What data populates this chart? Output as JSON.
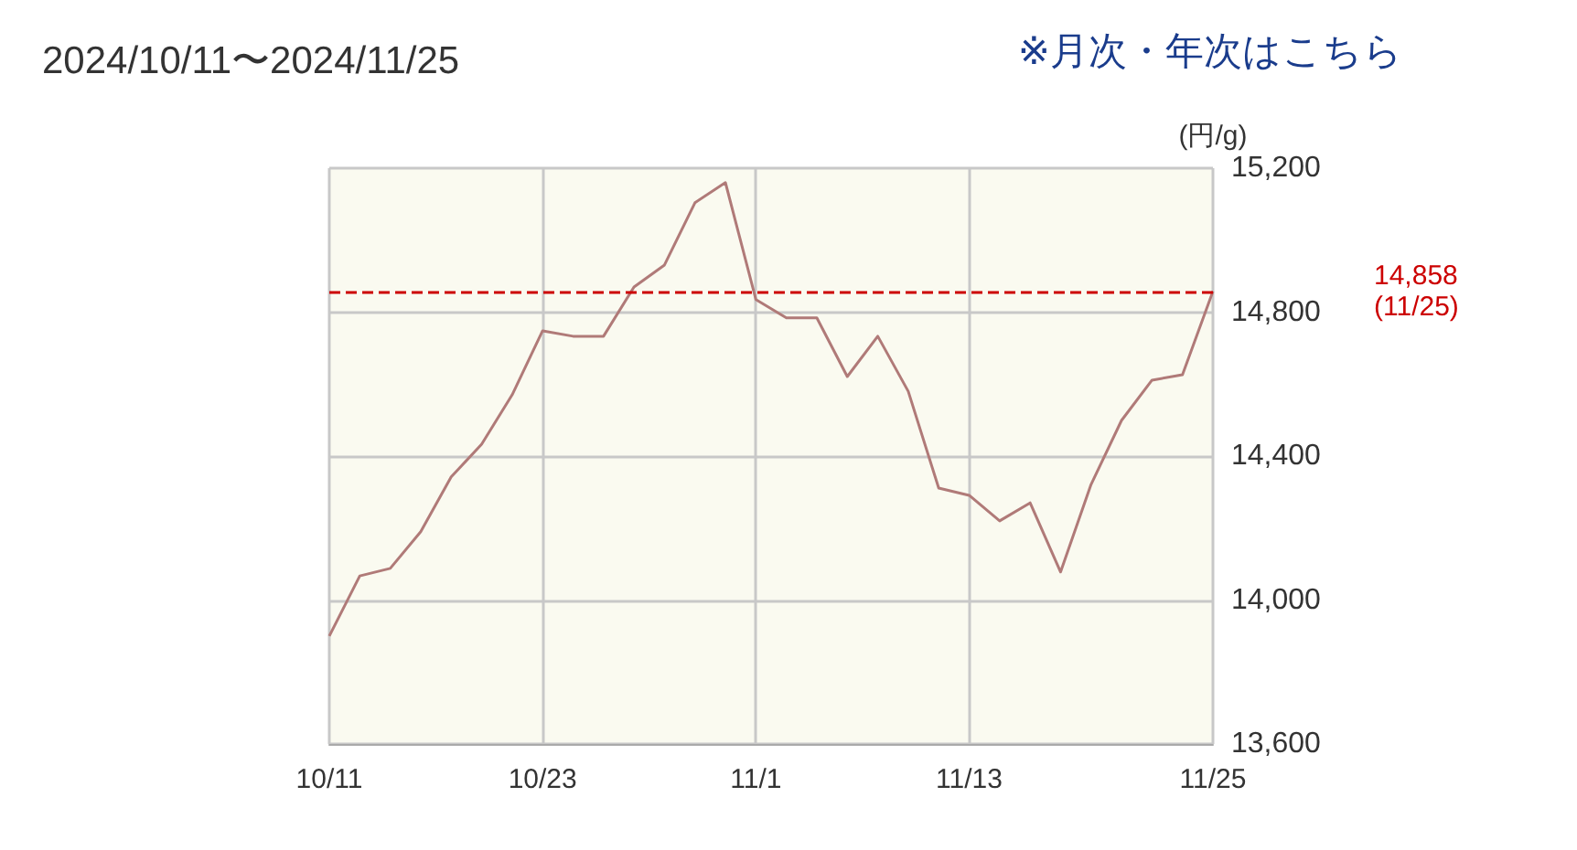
{
  "chart_data": {
    "type": "line",
    "title": "2024/10/11〜2024/11/25",
    "ylabel": "(円/g)",
    "annotations": [
      "※月次・年次はこちら"
    ],
    "categories": [
      "10/11",
      null,
      null,
      null,
      null,
      null,
      null,
      "10/23",
      null,
      null,
      null,
      null,
      null,
      null,
      "11/1",
      null,
      null,
      null,
      null,
      null,
      null,
      "11/13",
      null,
      null,
      null,
      null,
      null,
      null,
      null,
      "11/25"
    ],
    "series": [
      {
        "color": "#b07a78",
        "values": [
          13900,
          14067,
          14088,
          14190,
          14342,
          14433,
          14570,
          14748,
          14733,
          14733,
          14870,
          14931,
          15104,
          15160,
          14835,
          14784,
          14784,
          14621,
          14733,
          14580,
          14311,
          14291,
          14220,
          14270,
          14078,
          14321,
          14499,
          14611,
          14626,
          14858
        ]
      }
    ],
    "ylim": [
      13600,
      15200
    ],
    "yticks": [
      {
        "value": 13600,
        "label": "13,600"
      },
      {
        "value": 14000,
        "label": "14,000"
      },
      {
        "value": 14400,
        "label": "14,400"
      },
      {
        "value": 14800,
        "label": "14,800"
      },
      {
        "value": 15200,
        "label": "15,200"
      }
    ],
    "ref_lines": [
      {
        "axis": "y",
        "value": 14858,
        "label": "14,858\n(11/25)",
        "color": "#cc0000",
        "line_style": "dashed"
      }
    ],
    "grid": true,
    "marker": "none",
    "line_style": "solid"
  }
}
